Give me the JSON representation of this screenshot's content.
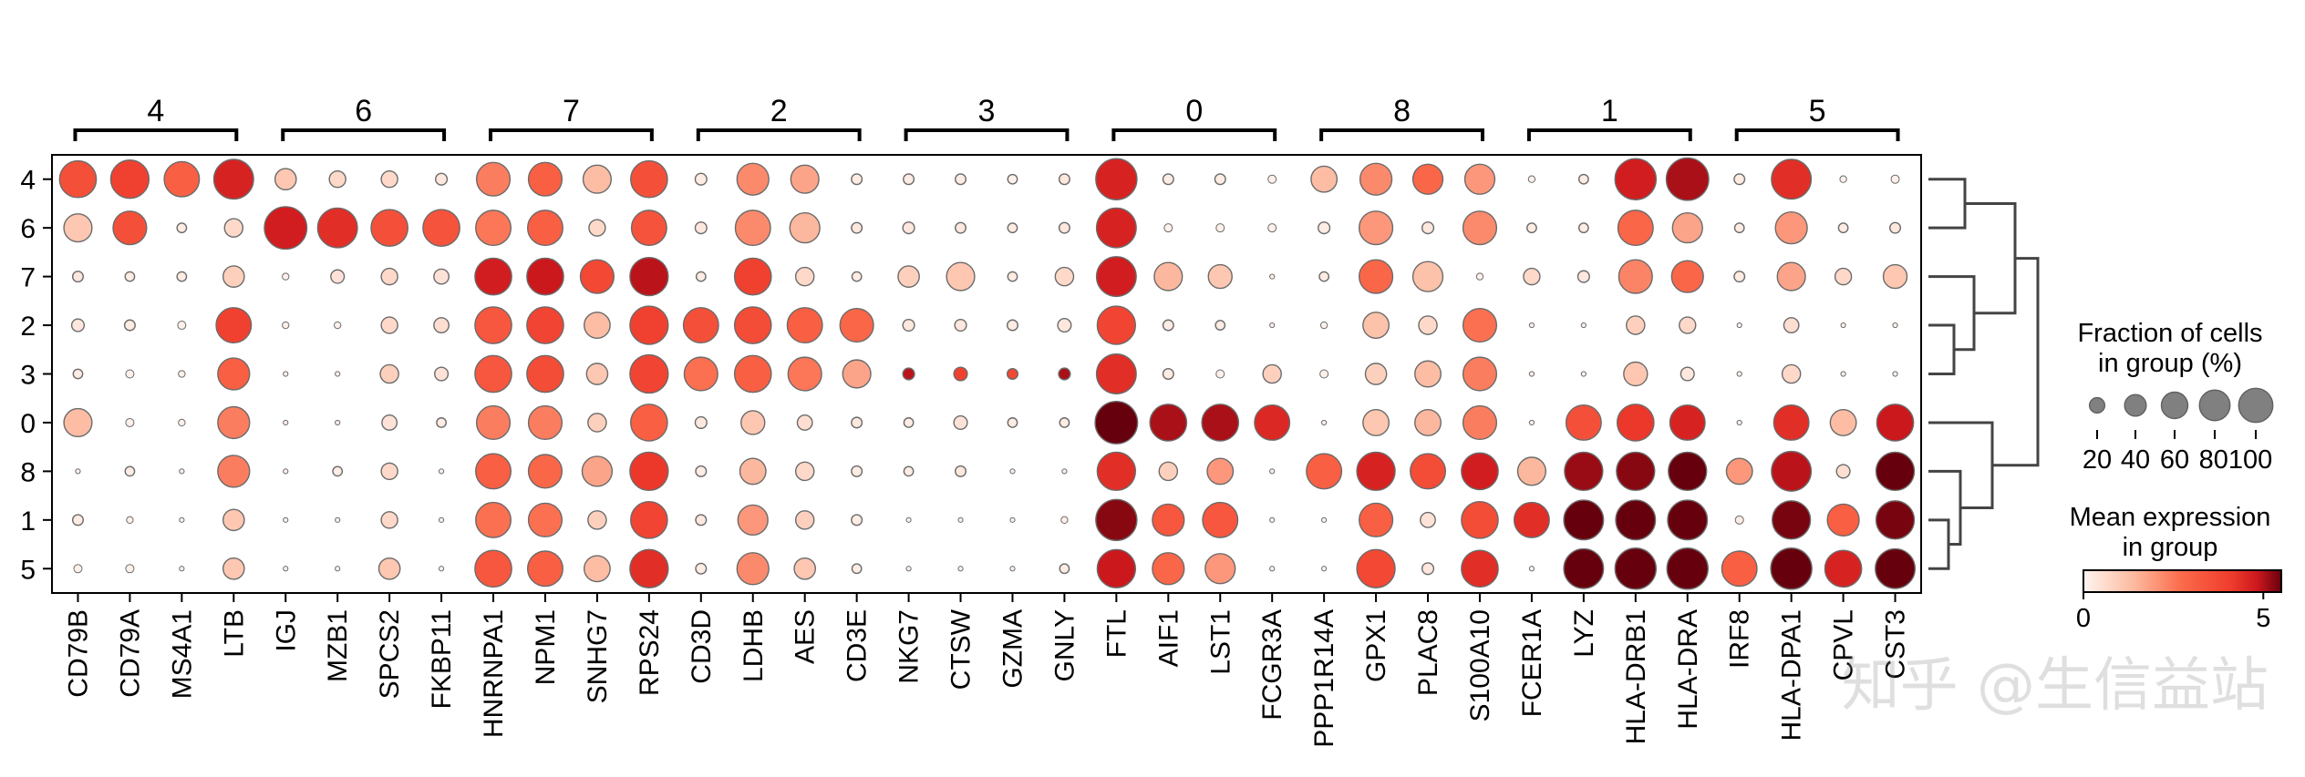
{
  "chart_data": {
    "type": "dotplot",
    "cluster_labels": [
      "4",
      "6",
      "7",
      "2",
      "3",
      "0",
      "8",
      "1",
      "5"
    ],
    "rows": [
      "4",
      "6",
      "7",
      "2",
      "3",
      "0",
      "8",
      "1",
      "5"
    ],
    "genes": [
      "CD79B",
      "CD79A",
      "MS4A1",
      "LTB",
      "IGJ",
      "MZB1",
      "SPCS2",
      "FKBP11",
      "HNRNPA1",
      "NPM1",
      "SNHG7",
      "RPS24",
      "CD3D",
      "LDHB",
      "AES",
      "CD3E",
      "NKG7",
      "CTSW",
      "GZMA",
      "GNLY",
      "FTL",
      "AIF1",
      "LST1",
      "FCGR3A",
      "PPP1R14A",
      "GPX1",
      "PLAC8",
      "S100A10",
      "FCER1A",
      "LYZ",
      "HLA-DRB1",
      "HLA-DRA",
      "IRF8",
      "HLA-DPA1",
      "CPVL",
      "CST3"
    ],
    "fraction": [
      [
        60,
        65,
        55,
        70,
        20,
        12,
        12,
        6,
        50,
        50,
        35,
        60,
        6,
        45,
        35,
        5,
        5,
        5,
        4,
        5,
        75,
        5,
        5,
        3,
        30,
        45,
        40,
        40,
        2,
        4,
        75,
        80,
        5,
        70,
        2,
        3
      ],
      [
        35,
        50,
        4,
        15,
        80,
        70,
        60,
        60,
        55,
        55,
        12,
        55,
        6,
        55,
        40,
        5,
        6,
        5,
        4,
        5,
        70,
        3,
        3,
        3,
        6,
        50,
        6,
        50,
        4,
        4,
        55,
        40,
        4,
        45,
        4,
        5
      ],
      [
        5,
        4,
        4,
        20,
        2,
        8,
        12,
        10,
        60,
        60,
        50,
        65,
        4,
        60,
        15,
        4,
        20,
        35,
        4,
        15,
        70,
        35,
        25,
        1,
        4,
        50,
        40,
        2,
        12,
        6,
        50,
        45,
        5,
        35,
        12,
        25
      ],
      [
        7,
        5,
        3,
        55,
        2,
        2,
        12,
        10,
        60,
        60,
        30,
        65,
        55,
        60,
        55,
        50,
        6,
        6,
        5,
        8,
        65,
        5,
        4,
        1,
        2,
        30,
        15,
        50,
        1,
        1,
        15,
        12,
        1,
        10,
        1,
        1
      ],
      [
        4,
        3,
        2,
        45,
        1,
        1,
        15,
        8,
        60,
        60,
        20,
        65,
        50,
        60,
        50,
        35,
        6,
        8,
        5,
        6,
        70,
        5,
        3,
        15,
        3,
        20,
        30,
        50,
        1,
        1,
        25,
        8,
        1,
        15,
        1,
        1
      ],
      [
        35,
        3,
        2,
        45,
        1,
        1,
        10,
        4,
        50,
        50,
        15,
        60,
        6,
        25,
        10,
        5,
        4,
        8,
        4,
        4,
        80,
        60,
        60,
        55,
        1,
        30,
        30,
        50,
        1,
        55,
        60,
        55,
        1,
        55,
        30,
        60
      ],
      [
        1,
        4,
        1,
        45,
        1,
        4,
        12,
        1,
        55,
        50,
        40,
        65,
        5,
        30,
        15,
        5,
        4,
        5,
        1,
        1,
        65,
        15,
        30,
        1,
        55,
        65,
        55,
        60,
        35,
        65,
        65,
        65,
        30,
        70,
        8,
        65
      ],
      [
        5,
        2,
        1,
        20,
        1,
        1,
        12,
        1,
        55,
        50,
        15,
        60,
        5,
        40,
        15,
        5,
        1,
        1,
        1,
        2,
        75,
        45,
        55,
        1,
        1,
        50,
        10,
        60,
        55,
        70,
        70,
        70,
        3,
        65,
        45,
        65
      ],
      [
        3,
        3,
        1,
        20,
        1,
        1,
        20,
        1,
        60,
        55,
        30,
        65,
        5,
        45,
        20,
        4,
        1,
        1,
        1,
        4,
        65,
        45,
        40,
        1,
        1,
        65,
        6,
        60,
        1,
        70,
        75,
        75,
        55,
        75,
        60,
        70
      ]
    ],
    "expression": [
      [
        3.2,
        3.6,
        2.8,
        4.2,
        1.0,
        0.6,
        0.6,
        0.3,
        2.2,
        2.8,
        1.2,
        3.2,
        0.2,
        2.0,
        1.6,
        0.2,
        0.2,
        0.2,
        0.1,
        0.3,
        4.2,
        0.2,
        0.2,
        0.1,
        1.2,
        2.0,
        2.6,
        1.8,
        0.1,
        0.2,
        4.3,
        4.6,
        0.2,
        4.0,
        0.1,
        0.1
      ],
      [
        1.0,
        3.2,
        0.2,
        0.6,
        4.3,
        4.0,
        3.2,
        3.1,
        2.3,
        2.8,
        0.6,
        3.1,
        0.3,
        2.0,
        1.3,
        0.3,
        0.3,
        0.3,
        0.2,
        0.3,
        4.2,
        0.1,
        0.1,
        0.1,
        0.2,
        1.8,
        0.3,
        2.0,
        0.2,
        0.2,
        2.6,
        1.6,
        0.2,
        1.8,
        0.2,
        0.3
      ],
      [
        0.3,
        0.2,
        0.2,
        0.8,
        0.1,
        0.4,
        0.6,
        0.4,
        4.3,
        4.4,
        3.4,
        4.5,
        0.2,
        3.6,
        0.6,
        0.2,
        0.8,
        1.0,
        0.2,
        0.6,
        4.3,
        1.3,
        1.0,
        0.1,
        0.2,
        2.6,
        1.1,
        0.1,
        0.6,
        0.3,
        2.1,
        2.6,
        0.2,
        1.6,
        0.6,
        1.0
      ],
      [
        0.3,
        0.2,
        0.1,
        3.6,
        0.1,
        0.1,
        0.6,
        0.5,
        3.0,
        3.5,
        1.2,
        3.6,
        3.2,
        3.3,
        2.8,
        2.6,
        0.3,
        0.3,
        0.2,
        0.3,
        3.5,
        0.2,
        0.2,
        0.1,
        0.1,
        1.1,
        0.6,
        2.4,
        0.1,
        0.1,
        0.8,
        0.6,
        0.1,
        0.5,
        0.1,
        0.1
      ],
      [
        0.2,
        0.1,
        0.1,
        2.8,
        0.1,
        0.1,
        0.8,
        0.4,
        3.0,
        3.3,
        1.0,
        3.5,
        2.4,
        2.8,
        2.3,
        1.6,
        4.5,
        3.6,
        3.4,
        4.6,
        4.0,
        0.2,
        0.1,
        0.8,
        0.1,
        0.8,
        1.2,
        2.2,
        0.1,
        0.1,
        1.0,
        0.3,
        0.1,
        0.6,
        0.1,
        0.1
      ],
      [
        1.2,
        0.1,
        0.1,
        2.2,
        0.1,
        0.1,
        0.4,
        0.2,
        2.2,
        2.2,
        0.8,
        2.8,
        0.3,
        1.0,
        0.5,
        0.3,
        0.2,
        0.4,
        0.2,
        0.2,
        5.6,
        4.6,
        4.6,
        4.1,
        0.1,
        1.0,
        1.3,
        2.2,
        0.1,
        3.2,
        3.8,
        4.2,
        0.1,
        4.0,
        1.2,
        4.4
      ],
      [
        0.1,
        0.2,
        0.1,
        2.2,
        0.1,
        0.2,
        0.6,
        0.1,
        2.8,
        2.6,
        1.6,
        3.8,
        0.2,
        1.3,
        0.6,
        0.2,
        0.2,
        0.3,
        0.1,
        0.1,
        4.0,
        0.8,
        1.8,
        0.1,
        2.8,
        4.2,
        3.3,
        4.3,
        1.3,
        4.7,
        4.8,
        5.0,
        1.8,
        4.5,
        0.5,
        5.0
      ],
      [
        0.2,
        0.1,
        0.1,
        1.0,
        0.1,
        0.1,
        0.6,
        0.1,
        2.4,
        2.4,
        0.8,
        3.5,
        0.3,
        1.8,
        0.8,
        0.2,
        0.1,
        0.1,
        0.1,
        0.1,
        4.8,
        3.0,
        3.0,
        0.1,
        0.1,
        2.8,
        0.4,
        3.3,
        4.0,
        5.1,
        5.2,
        5.4,
        0.2,
        4.9,
        2.8,
        4.9
      ],
      [
        0.1,
        0.1,
        0.1,
        1.0,
        0.1,
        0.1,
        1.0,
        0.1,
        3.0,
        2.8,
        1.2,
        4.0,
        0.2,
        2.0,
        1.0,
        0.2,
        0.1,
        0.1,
        0.1,
        0.2,
        4.4,
        2.6,
        1.8,
        0.1,
        0.1,
        3.4,
        0.3,
        4.0,
        0.1,
        5.2,
        5.3,
        5.5,
        2.8,
        5.4,
        4.2,
        5.3
      ]
    ],
    "color_range": [
      0,
      5
    ],
    "size_legend": {
      "title": [
        "Fraction of cells",
        "in group (%)"
      ],
      "levels": [
        20,
        40,
        60,
        80,
        100
      ],
      "labels": [
        "20",
        "40",
        "60",
        "80100"
      ]
    },
    "color_legend": {
      "title": [
        "Mean expression",
        "in group"
      ],
      "min_label": "0",
      "max_label": "5"
    },
    "dendrogram_order": [
      "4",
      "6",
      "7",
      "2",
      "3",
      "0",
      "8",
      "1",
      "5"
    ]
  },
  "watermark": "知乎 @生信益站"
}
